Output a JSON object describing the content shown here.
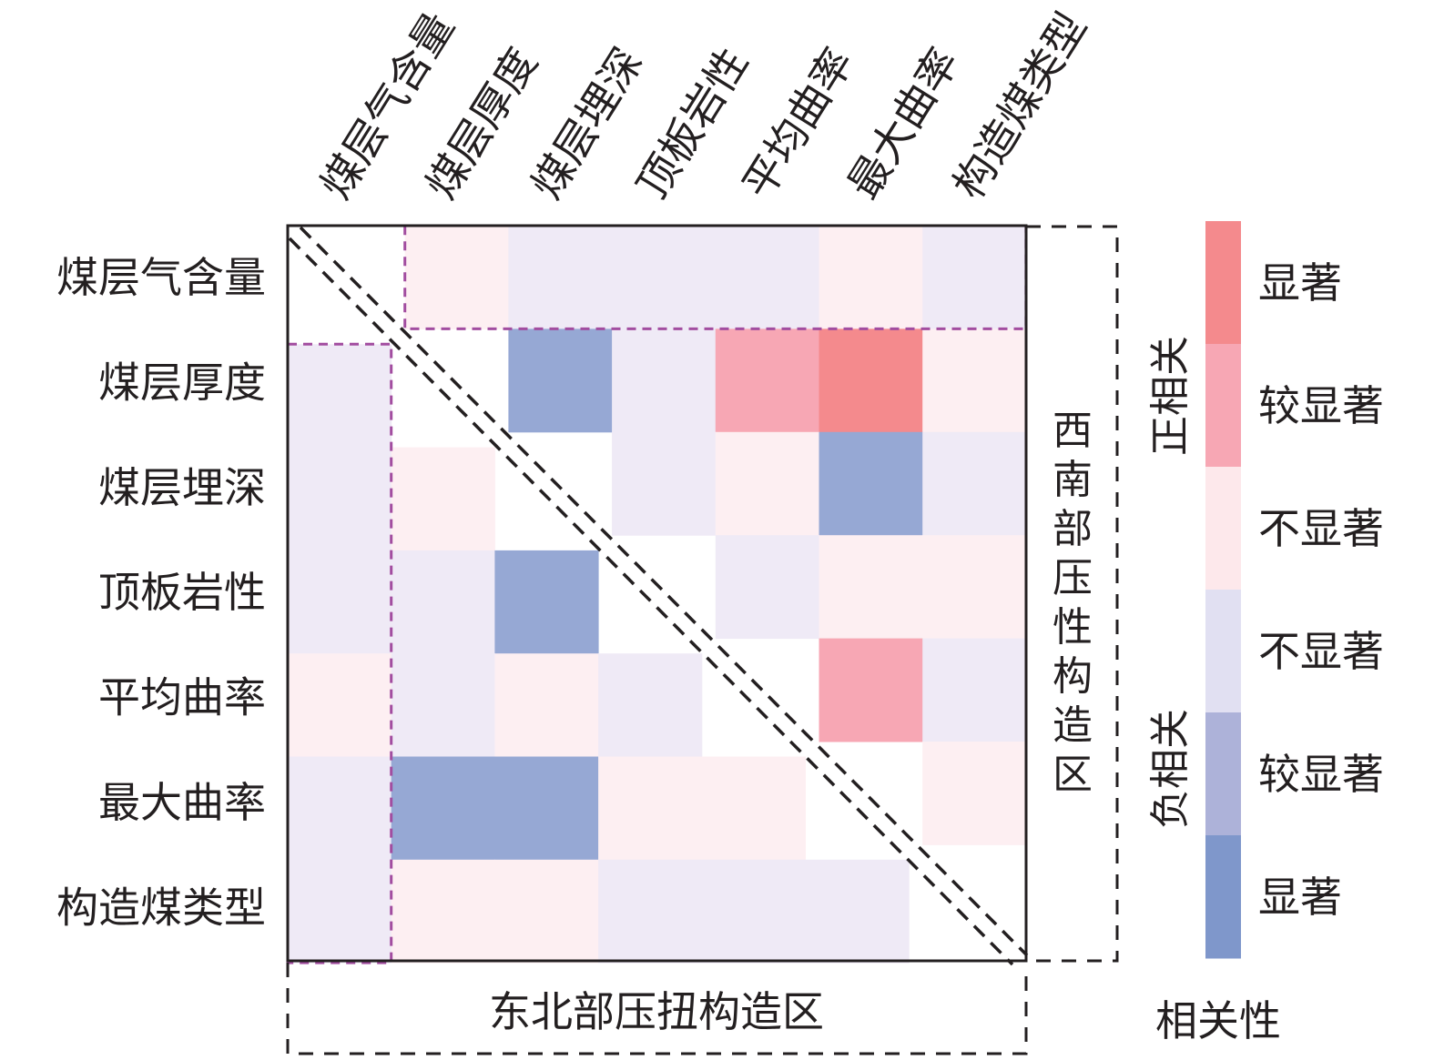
{
  "chart_data": {
    "type": "heatmap",
    "title": "",
    "variables": [
      "煤层气含量",
      "煤层厚度",
      "煤层埋深",
      "顶板岩性",
      "平均曲率",
      "最大曲率",
      "构造煤类型"
    ],
    "row_labels": [
      "煤层气含量",
      "煤层厚度",
      "煤层埋深",
      "顶板岩性",
      "平均曲率",
      "最大曲率",
      "构造煤类型"
    ],
    "col_labels": [
      "煤层气含量",
      "煤层厚度",
      "煤层埋深",
      "顶板岩性",
      "平均曲率",
      "最大曲率",
      "构造煤类型"
    ],
    "upper_region_label": "西南部压性构造区",
    "lower_region_label": "东北部压扭构造区",
    "levels": [
      {
        "key": "sig_pos",
        "group": "正相关",
        "label": "显著",
        "color": "#f48a8d"
      },
      {
        "key": "mod_pos",
        "group": "正相关",
        "label": "较显著",
        "color": "#f7a7b4"
      },
      {
        "key": "ns_pos",
        "group": "正相关",
        "label": "不显著",
        "color": "#fde8eb"
      },
      {
        "key": "ns_neg",
        "group": "负相关",
        "label": "不显著",
        "color": "#e1e0f2"
      },
      {
        "key": "mod_neg",
        "group": "负相关",
        "label": "较显著",
        "color": "#adb2d9"
      },
      {
        "key": "sig_neg",
        "group": "负相关",
        "label": "显著",
        "color": "#7f97cb"
      }
    ],
    "cell_colors": {
      "sig_pos": "#f48a8d",
      "mod_pos": "#f7a7b4",
      "ns_pos": "#fdeff2",
      "ns_neg": "#efeaf6",
      "mod_neg": "#aeb3da",
      "sig_neg": "#96a8d4"
    },
    "upper_triangle": [
      [
        "",
        "ns_pos",
        "ns_neg",
        "ns_neg",
        "ns_neg",
        "ns_pos",
        "ns_neg"
      ],
      [
        "",
        "",
        "sig_neg",
        "ns_neg",
        "mod_pos",
        "sig_pos",
        "ns_pos"
      ],
      [
        "",
        "",
        "",
        "ns_neg",
        "ns_pos",
        "sig_neg",
        "ns_neg"
      ],
      [
        "",
        "",
        "",
        "",
        "ns_neg",
        "ns_pos",
        "ns_pos"
      ],
      [
        "",
        "",
        "",
        "",
        "",
        "mod_pos",
        "ns_neg"
      ],
      [
        "",
        "",
        "",
        "",
        "",
        "",
        "ns_pos"
      ],
      [
        "",
        "",
        "",
        "",
        "",
        "",
        ""
      ]
    ],
    "lower_triangle": [
      [
        "",
        "",
        "",
        "",
        "",
        "",
        ""
      ],
      [
        "ns_neg",
        "",
        "",
        "",
        "",
        "",
        ""
      ],
      [
        "ns_neg",
        "ns_pos",
        "",
        "",
        "",
        "",
        ""
      ],
      [
        "ns_neg",
        "ns_neg",
        "sig_neg",
        "",
        "",
        "",
        ""
      ],
      [
        "ns_pos",
        "ns_neg",
        "ns_pos",
        "ns_neg",
        "",
        "",
        ""
      ],
      [
        "ns_neg",
        "sig_neg",
        "sig_neg",
        "ns_pos",
        "ns_pos",
        "",
        ""
      ],
      [
        "ns_neg",
        "ns_pos",
        "ns_pos",
        "ns_neg",
        "ns_neg",
        "ns_neg",
        ""
      ]
    ],
    "highlight_boxes": [
      {
        "region": "upper",
        "target": "row",
        "index": 0,
        "color": "#a24da0"
      },
      {
        "region": "lower",
        "target": "column",
        "index": 0,
        "color": "#a24da0"
      }
    ],
    "legend": {
      "title": "相关性",
      "positive_group": "正相关",
      "negative_group": "负相关",
      "placement": "right"
    }
  }
}
